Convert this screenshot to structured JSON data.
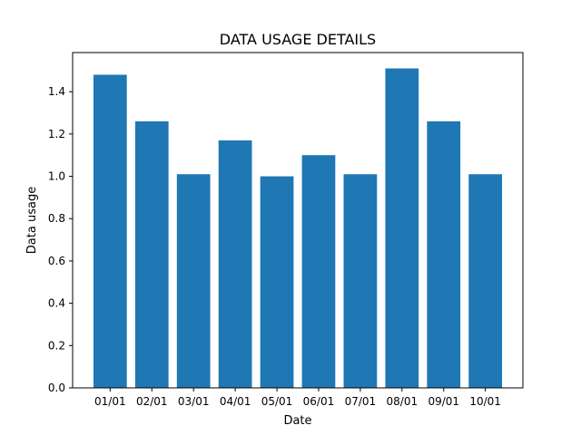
{
  "chart_data": {
    "type": "bar",
    "title": "DATA USAGE DETAILS",
    "xlabel": "Date",
    "ylabel": "Data usage",
    "categories": [
      "01/01",
      "02/01",
      "03/01",
      "04/01",
      "05/01",
      "06/01",
      "07/01",
      "08/01",
      "09/01",
      "10/01"
    ],
    "values": [
      1.48,
      1.26,
      1.01,
      1.17,
      1.0,
      1.1,
      1.01,
      1.51,
      1.26,
      1.01
    ],
    "ylim": [
      0,
      1.585
    ],
    "yticks": [
      0.0,
      0.2,
      0.4,
      0.6,
      0.8,
      1.0,
      1.2,
      1.4
    ],
    "ytick_labels": [
      "0.0",
      "0.2",
      "0.4",
      "0.6",
      "0.8",
      "1.0",
      "1.2",
      "1.4"
    ],
    "grid": false,
    "bar_color": "#1f77b4"
  }
}
